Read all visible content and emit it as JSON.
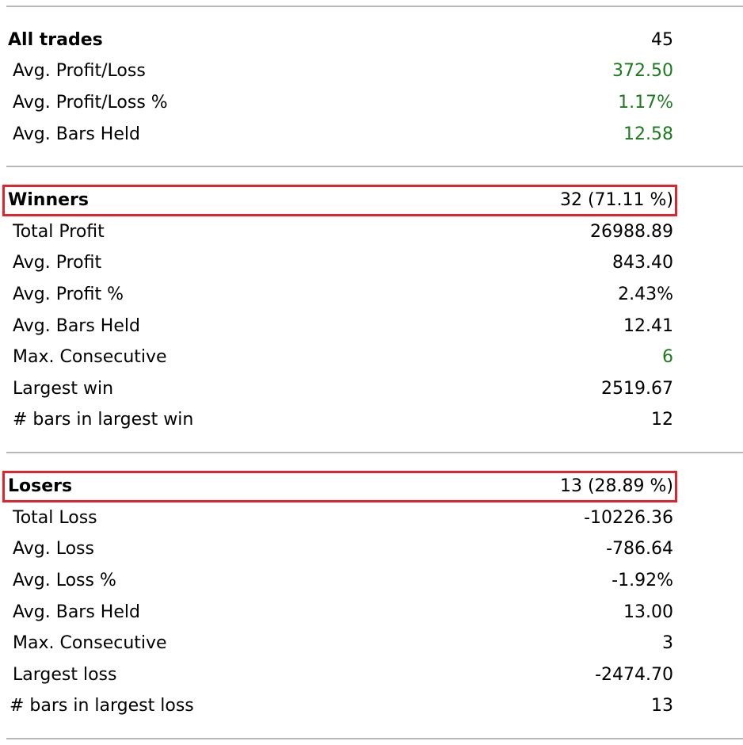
{
  "sections": {
    "all_trades": {
      "header": {
        "label": "All trades",
        "value": "45"
      },
      "rows": [
        {
          "label": "Avg. Profit/Loss",
          "value": "372.50"
        },
        {
          "label": "Avg. Profit/Loss %",
          "value": "1.17%"
        },
        {
          "label": "Avg. Bars Held",
          "value": "12.58"
        }
      ]
    },
    "winners": {
      "header": {
        "label": "Winners",
        "value": "32 (71.11 %)"
      },
      "rows": [
        {
          "label": "Total Profit",
          "value": "26988.89"
        },
        {
          "label": "Avg. Profit",
          "value": "843.40"
        },
        {
          "label": "Avg. Profit %",
          "value": "2.43%"
        },
        {
          "label": "Avg. Bars Held",
          "value": "12.41"
        },
        {
          "label": "Max. Consecutive",
          "value": "6"
        },
        {
          "label": "Largest win",
          "value": "2519.67"
        },
        {
          "label": "# bars in largest win",
          "value": "12"
        }
      ]
    },
    "losers": {
      "header": {
        "label": "Losers",
        "value": "13 (28.89 %)"
      },
      "rows": [
        {
          "label": "Total Loss",
          "value": "-10226.36"
        },
        {
          "label": "Avg. Loss",
          "value": "-786.64"
        },
        {
          "label": "Avg. Loss %",
          "value": "-1.92%"
        },
        {
          "label": "Avg. Bars Held",
          "value": "13.00"
        },
        {
          "label": "Max. Consecutive",
          "value": "3"
        },
        {
          "label": "Largest loss",
          "value": "-2474.70"
        },
        {
          "label": "# bars in largest loss",
          "value": "13"
        }
      ]
    }
  },
  "colors": {
    "positive": "#1e7a1e",
    "highlight": "#e3232c",
    "divider": "#b8b8b8"
  }
}
